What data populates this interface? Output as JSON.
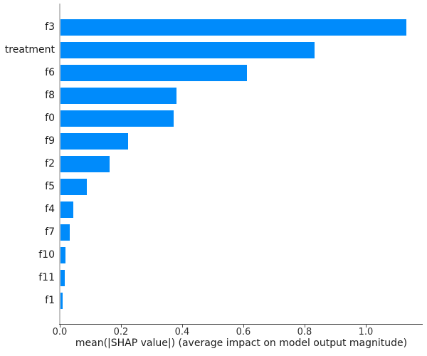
{
  "chart_data": {
    "type": "bar",
    "orientation": "horizontal",
    "title": "",
    "xlabel": "mean(|SHAP value|) (average impact on model output magnitude)",
    "ylabel": "",
    "categories": [
      "f3",
      "treatment",
      "f6",
      "f8",
      "f0",
      "f9",
      "f2",
      "f5",
      "f4",
      "f7",
      "f10",
      "f11",
      "f1"
    ],
    "values": [
      1.13,
      0.83,
      0.61,
      0.38,
      0.37,
      0.22,
      0.16,
      0.085,
      0.041,
      0.03,
      0.016,
      0.014,
      0.006
    ],
    "x_ticks": [
      0.0,
      0.2,
      0.4,
      0.6,
      0.8,
      1.0
    ],
    "x_tick_labels": [
      "0.0",
      "0.2",
      "0.4",
      "0.6",
      "0.8",
      "1.0"
    ],
    "xlim": [
      0,
      1.185
    ],
    "grid": false,
    "legend": "none",
    "bar_color": "#008bfb",
    "spine_color_left": "#c3c3c3",
    "spine_color_bottom": "#4a4a4a",
    "text_color": "#1a1a1a"
  }
}
